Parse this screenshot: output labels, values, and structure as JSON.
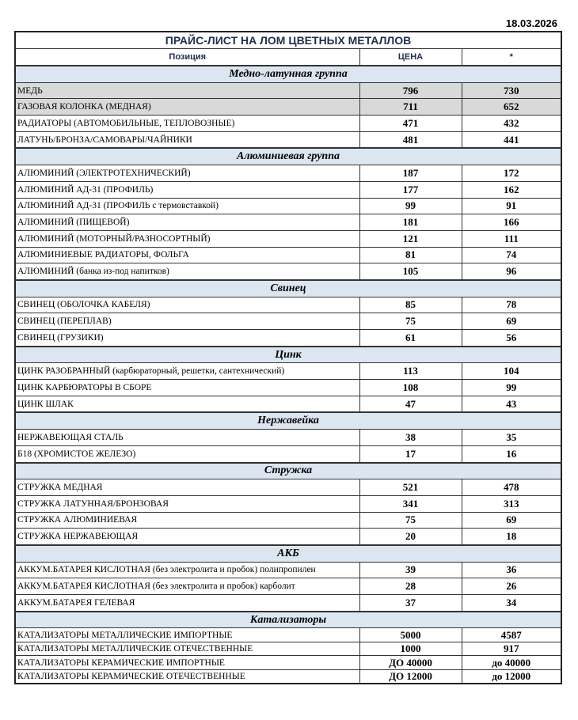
{
  "date": "18.03.2026",
  "title": "ПРАЙС-ЛИСТ НА ЛОМ ЦВЕТНЫХ МЕТАЛЛОВ",
  "columns": [
    "Позиция",
    "ЦЕНА",
    "*"
  ],
  "groups": [
    {
      "name": "Медно-латунная группа",
      "items": [
        [
          "МЕДЬ",
          "796",
          "730",
          true
        ],
        [
          "ГАЗОВАЯ КОЛОНКА (МЕДНАЯ)",
          "711",
          "652",
          true
        ],
        [
          "РАДИАТОРЫ (АВТОМОБИЛЬНЫЕ, ТЕПЛОВОЗНЫЕ)",
          "471",
          "432"
        ],
        [
          "ЛАТУНЬ/БРОНЗА/САМОВАРЫ/ЧАЙНИКИ",
          "481",
          "441"
        ]
      ]
    },
    {
      "name": "Алюминиевая группа",
      "items": [
        [
          "АЛЮМИНИЙ (ЭЛЕКТРОТЕХНИЧЕСКИЙ)",
          "187",
          "172"
        ],
        [
          "АЛЮМИНИЙ АД-31 (ПРОФИЛЬ)",
          "177",
          "162"
        ],
        [
          "АЛЮМИНИЙ АД-31 (ПРОФИЛЬ с термовставкой)",
          "99",
          "91"
        ],
        [
          "АЛЮМИНИЙ (ПИЩЕВОЙ)",
          "181",
          "166"
        ],
        [
          "АЛЮМИНИЙ (МОТОРНЫЙ/РАЗНОСОРТНЫЙ)",
          "121",
          "111"
        ],
        [
          "АЛЮМИНИЕВЫЕ РАДИАТОРЫ, ФОЛЬГА",
          "81",
          "74"
        ],
        [
          "АЛЮМИНИЙ (банка из-под напитков)",
          "105",
          "96"
        ]
      ]
    },
    {
      "name": "Свинец",
      "items": [
        [
          "СВИНЕЦ (ОБОЛОЧКА КАБЕЛЯ)",
          "85",
          "78"
        ],
        [
          "СВИНЕЦ (ПЕРЕПЛАВ)",
          "75",
          "69"
        ],
        [
          "СВИНЕЦ (ГРУЗИКИ)",
          "61",
          "56"
        ]
      ]
    },
    {
      "name": "Цинк",
      "items": [
        [
          "ЦИНК РАЗОБРАННЫЙ (карбюраторный, решетки, сантехнический)",
          "113",
          "104"
        ],
        [
          "ЦИНК КАРБЮРАТОРЫ В СБОРЕ",
          "108",
          "99"
        ],
        [
          "ЦИНК ШЛАК",
          "47",
          "43"
        ]
      ]
    },
    {
      "name": "Нержавейка",
      "items": [
        [
          "НЕРЖАВЕЮЩАЯ СТАЛЬ",
          "38",
          "35"
        ],
        [
          "Б18 (ХРОМИСТОЕ ЖЕЛЕЗО)",
          "17",
          "16"
        ]
      ]
    },
    {
      "name": "Стружка",
      "items": [
        [
          "СТРУЖКА МЕДНАЯ",
          "521",
          "478"
        ],
        [
          "СТРУЖКА ЛАТУННАЯ/БРОНЗОВАЯ",
          "341",
          "313"
        ],
        [
          "СТРУЖКА АЛЮМИНИЕВАЯ",
          "75",
          "69"
        ],
        [
          "СТРУЖКА НЕРЖАВЕЮЩАЯ",
          "20",
          "18"
        ]
      ]
    },
    {
      "name": "АКБ",
      "items": [
        [
          "АККУМ.БАТАРЕЯ КИСЛОТНАЯ (без электролита и пробок) полипропилен",
          "39",
          "36"
        ],
        [
          "АККУМ.БАТАРЕЯ КИСЛОТНАЯ (без электролита и пробок) карболит",
          "28",
          "26"
        ],
        [
          "АККУМ.БАТАРЕЯ ГЕЛЕВАЯ",
          "37",
          "34"
        ]
      ]
    },
    {
      "name": "Катализаторы",
      "small": true,
      "items": [
        [
          "КАТАЛИЗАТОРЫ МЕТАЛЛИЧЕСКИЕ ИМПОРТНЫЕ",
          "5000",
          "4587"
        ],
        [
          "КАТАЛИЗАТОРЫ МЕТАЛЛИЧЕСКИЕ ОТЕЧЕСТВЕННЫЕ",
          "1000",
          "917"
        ],
        [
          "КАТАЛИЗАТОРЫ КЕРАМИЧЕСКИЕ ИМПОРТНЫЕ",
          "ДО 40000",
          "до 40000"
        ],
        [
          "КАТАЛИЗАТОРЫ КЕРАМИЧЕСКИЕ ОТЕЧЕСТВЕННЫЕ",
          "ДО 12000",
          "до 12000"
        ]
      ]
    }
  ]
}
